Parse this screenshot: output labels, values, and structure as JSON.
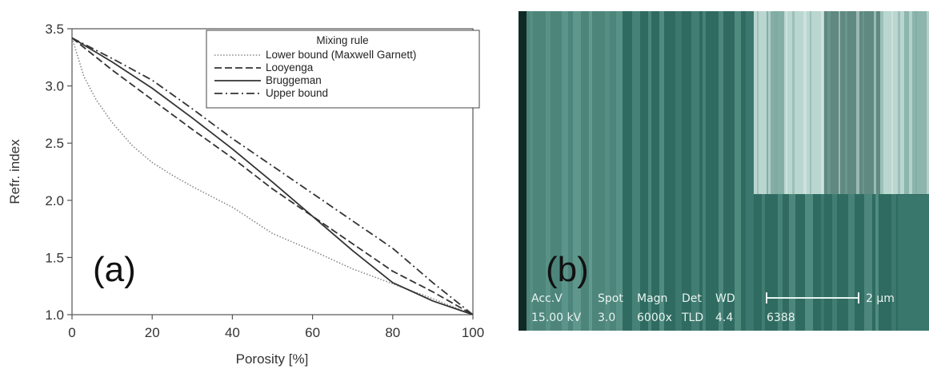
{
  "chart_data": {
    "type": "line",
    "xlabel": "Porosity [%]",
    "ylabel": "Refr. index",
    "xlim": [
      0,
      100
    ],
    "ylim": [
      1.0,
      3.5
    ],
    "xticks": [
      "0",
      "20",
      "40",
      "60",
      "80",
      "100"
    ],
    "yticks": [
      "1.0",
      "1.5",
      "2.0",
      "2.5",
      "3.0",
      "3.5"
    ],
    "grid": false,
    "legend_title": "Mixing rule",
    "legend_position": "top-right",
    "panel_label": "(a)",
    "series": [
      {
        "name": "Lower bound (Maxwell Garnett)",
        "style": "dotted",
        "color": "#888888",
        "x": [
          0,
          3,
          6,
          10,
          15,
          20,
          25,
          30,
          40,
          50,
          60,
          70,
          80,
          90,
          100
        ],
        "y": [
          3.42,
          3.08,
          2.88,
          2.68,
          2.48,
          2.33,
          2.22,
          2.12,
          1.94,
          1.71,
          1.56,
          1.4,
          1.27,
          1.14,
          1.0
        ]
      },
      {
        "name": "Looyenga",
        "style": "dashed",
        "color": "#333333",
        "x": [
          0,
          10,
          20,
          30,
          40,
          50,
          60,
          70,
          80,
          90,
          100
        ],
        "y": [
          3.42,
          3.14,
          2.88,
          2.62,
          2.37,
          2.1,
          1.86,
          1.62,
          1.38,
          1.2,
          1.0
        ]
      },
      {
        "name": "Bruggeman",
        "style": "solid",
        "color": "#333333",
        "x": [
          0,
          10,
          20,
          30,
          40,
          50,
          60,
          70,
          80,
          90,
          100
        ],
        "y": [
          3.42,
          3.21,
          2.98,
          2.72,
          2.45,
          2.16,
          1.86,
          1.56,
          1.28,
          1.12,
          1.0
        ]
      },
      {
        "name": "Upper bound",
        "style": "dashdot",
        "color": "#333333",
        "x": [
          0,
          10,
          20,
          30,
          40,
          50,
          60,
          70,
          80,
          90,
          100
        ],
        "y": [
          3.42,
          3.24,
          3.05,
          2.8,
          2.54,
          2.3,
          2.06,
          1.82,
          1.58,
          1.28,
          1.0
        ]
      }
    ]
  },
  "micrograph": {
    "panel_label": "(b)",
    "scale_bar": "2 µm",
    "info_headers": [
      "Acc.V",
      "Spot",
      "Magn",
      "Det",
      "WD"
    ],
    "info_values": [
      "15.00 kV",
      "3.0",
      "6000x",
      "TLD",
      "4.4"
    ],
    "image_id": "6388",
    "colors": {
      "base": "#2f6b61",
      "stripe_light": "#7fb8ac",
      "inset": "#b9d6cf"
    }
  }
}
